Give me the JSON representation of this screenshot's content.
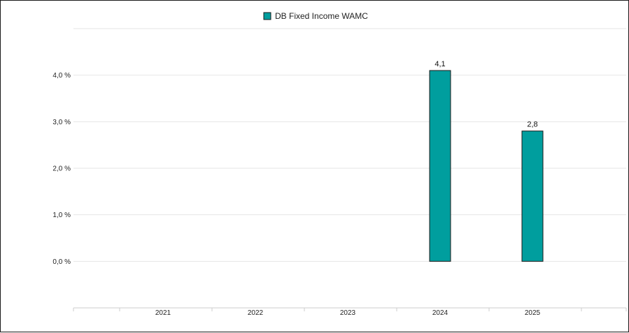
{
  "chart_data": {
    "type": "bar",
    "categories": [
      "2021",
      "2022",
      "2023",
      "2024",
      "2025"
    ],
    "series": [
      {
        "name": "DB Fixed Income WAMC",
        "values": [
          null,
          null,
          null,
          4.1,
          2.8
        ],
        "data_labels": [
          "",
          "",
          "",
          "4,1",
          "2,8"
        ],
        "color": "#009e9e"
      }
    ],
    "y_ticks": [
      {
        "value": 0,
        "label": "0,0 %"
      },
      {
        "value": 1,
        "label": "1,0 %"
      },
      {
        "value": 2,
        "label": "2,0 %"
      },
      {
        "value": 3,
        "label": "3,0 %"
      },
      {
        "value": 4,
        "label": "4,0 %"
      }
    ],
    "ylim": [
      -1,
      5
    ],
    "grid": true,
    "legend_position": "top-center",
    "bar_border_color": "#1a1a1a",
    "grid_color": "#e6e6e6"
  }
}
